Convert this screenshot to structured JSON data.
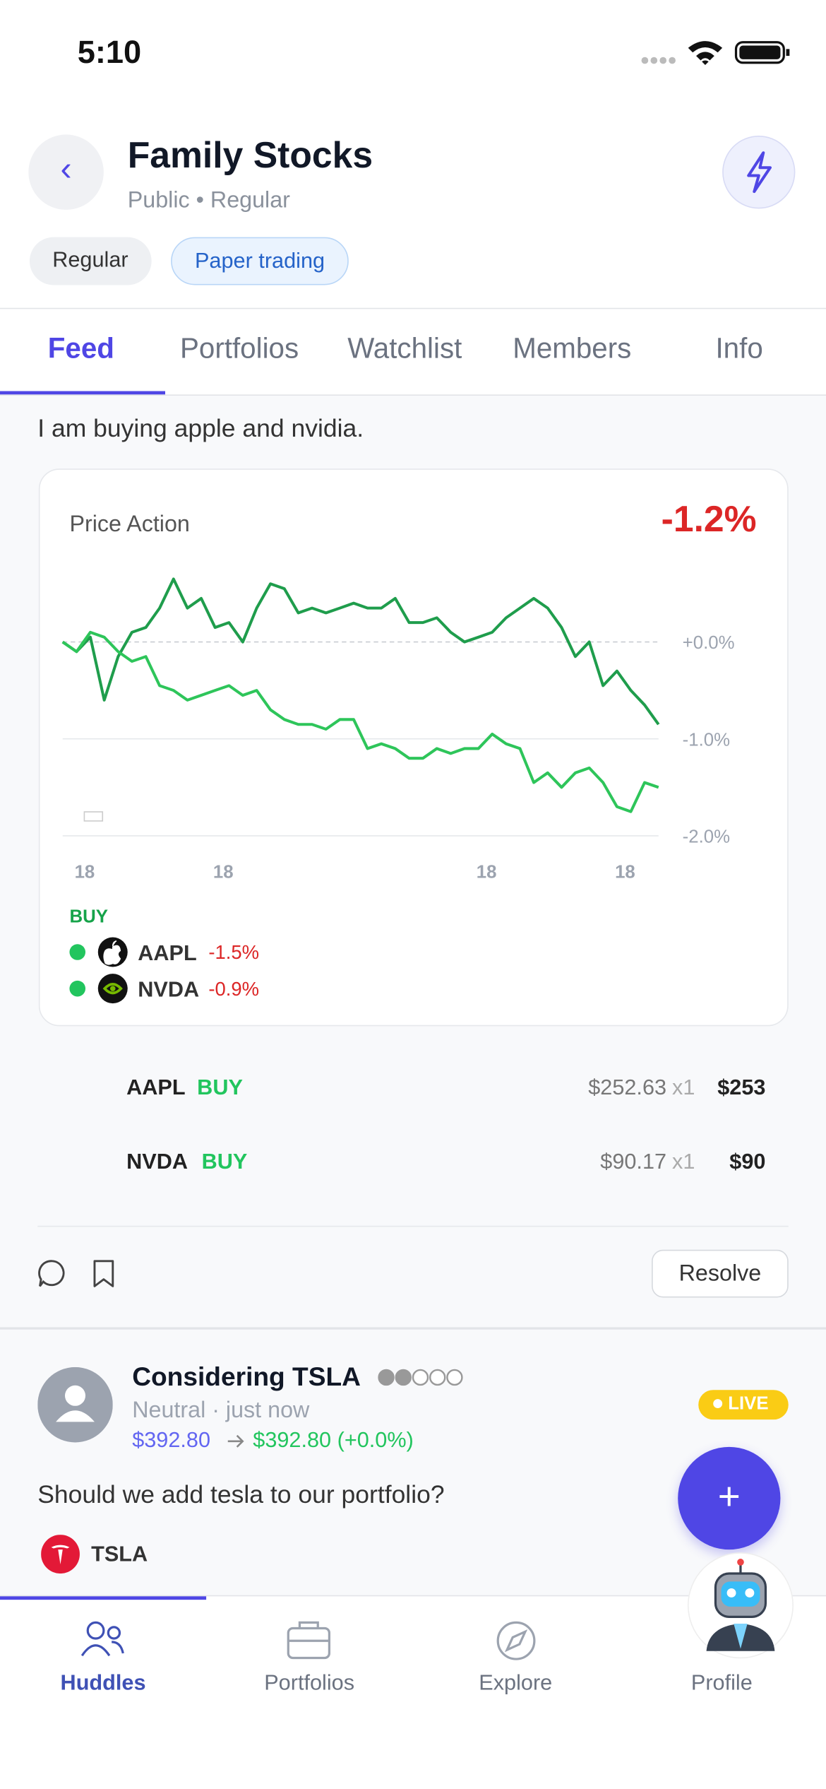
{
  "status_bar": {
    "time": "5:10"
  },
  "header": {
    "title": "Family Stocks",
    "subtitle": "Public • Regular",
    "chips": [
      "Regular",
      "Paper trading"
    ]
  },
  "tabs": [
    "Feed",
    "Portfolios",
    "Watchlist",
    "Members",
    "Info"
  ],
  "post": {
    "text": "I am buying apple and nvidia.",
    "price_chart": {
      "type": "line",
      "title": "Price Action",
      "change": "-1.2%",
      "categories": [
        null,
        null,
        "18",
        null,
        null,
        null,
        null,
        null,
        null,
        null,
        null,
        null,
        "18",
        null,
        null,
        null,
        null,
        null,
        null,
        null,
        null,
        null,
        null,
        null,
        null,
        null,
        null,
        null,
        null,
        null,
        null,
        "18",
        null,
        null,
        null,
        null,
        null,
        null,
        null,
        null,
        null,
        "18",
        null,
        null
      ],
      "series": [
        {
          "name": "NVDA",
          "color": "#1f9d4c",
          "values": [
            0.0,
            -0.1,
            0.05,
            -0.6,
            -0.15,
            0.1,
            0.15,
            0.35,
            0.65,
            0.35,
            0.45,
            0.15,
            0.2,
            0.0,
            0.35,
            0.6,
            0.55,
            0.3,
            0.35,
            0.3,
            0.35,
            0.4,
            0.35,
            0.35,
            0.45,
            0.2,
            0.2,
            0.25,
            0.1,
            0.0,
            0.05,
            0.1,
            0.25,
            0.35,
            0.45,
            0.35,
            0.15,
            -0.15,
            0.0,
            -0.45,
            -0.3,
            -0.5,
            -0.65,
            -0.85
          ]
        },
        {
          "name": "AAPL",
          "color": "#2ec55a",
          "values": [
            0.0,
            -0.1,
            0.1,
            0.05,
            -0.1,
            -0.2,
            -0.15,
            -0.45,
            -0.5,
            -0.6,
            -0.55,
            -0.5,
            -0.45,
            -0.55,
            -0.5,
            -0.7,
            -0.8,
            -0.85,
            -0.85,
            -0.9,
            -0.8,
            -0.8,
            -1.1,
            -1.05,
            -1.1,
            -1.2,
            -1.2,
            -1.1,
            -1.15,
            -1.1,
            -1.1,
            -0.95,
            -1.05,
            -1.1,
            -1.45,
            -1.35,
            -1.5,
            -1.35,
            -1.3,
            -1.45,
            -1.7,
            -1.75,
            -1.45,
            -1.5
          ]
        }
      ],
      "ylim": [
        -2.0,
        1.0
      ],
      "yticks": [
        {
          "value": 0,
          "label": "+0.0%"
        },
        {
          "value": -1,
          "label": "-1.0%"
        },
        {
          "value": -2,
          "label": "-2.0%"
        }
      ],
      "legend_title": "BUY",
      "legend": [
        {
          "name": "AAPL",
          "change": "-1.5%"
        },
        {
          "name": "NVDA",
          "change": "-0.9%"
        }
      ]
    },
    "holdings": [
      {
        "ticker": "AAPL",
        "action": "BUY",
        "price": "$252.63",
        "qty": "x1",
        "total": "$253"
      },
      {
        "ticker": "NVDA",
        "action": "BUY",
        "price": "$90.17",
        "qty": "x1",
        "total": "$90"
      }
    ],
    "resolve": "Resolve"
  },
  "post2": {
    "title": "Considering TSLA",
    "meta": "Neutral · just now",
    "from": "$392.80",
    "to": "$392.80 (+0.0%)",
    "badge": "LIVE",
    "text": "Should we add tesla to our portfolio?",
    "ticker": "TSLA"
  },
  "nav": [
    "Huddles",
    "Portfolios",
    "Explore",
    "Profile"
  ]
}
